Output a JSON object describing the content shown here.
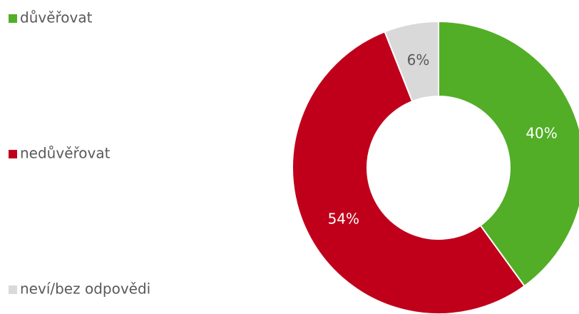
{
  "chart_data": {
    "type": "donut",
    "categories": [
      "důvěřovat",
      "nedůvěřovat",
      "neví/bez odpovědi"
    ],
    "values": [
      40,
      54,
      6
    ],
    "value_labels": [
      "40%",
      "54%",
      "6%"
    ],
    "colors": [
      "#52ae27",
      "#c0001b",
      "#d9d9d9"
    ]
  }
}
